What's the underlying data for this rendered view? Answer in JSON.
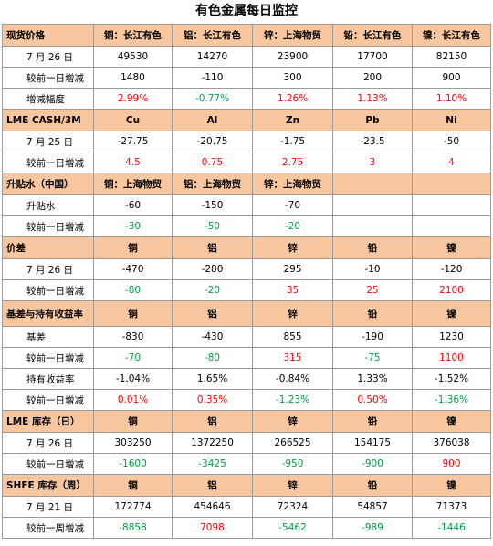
{
  "title": "有色金属每日监控",
  "sections": [
    {
      "header": [
        "现货价格",
        "铜：长江有色",
        "铝：长江有色",
        "锌：上海物贸",
        "铅：长江有色",
        "镍：长江有色"
      ],
      "rows": [
        {
          "label": "7 月 26 日",
          "cells": [
            {
              "v": "49530"
            },
            {
              "v": "14270"
            },
            {
              "v": "23900"
            },
            {
              "v": "17700"
            },
            {
              "v": "82150"
            }
          ]
        },
        {
          "label": "较前一日增减",
          "cells": [
            {
              "v": "1480"
            },
            {
              "v": "-110"
            },
            {
              "v": "300"
            },
            {
              "v": "200"
            },
            {
              "v": "900"
            }
          ]
        },
        {
          "label": "增减幅度",
          "cells": [
            {
              "v": "2.99%",
              "c": "red"
            },
            {
              "v": "-0.77%",
              "c": "green"
            },
            {
              "v": "1.26%",
              "c": "red"
            },
            {
              "v": "1.13%",
              "c": "red"
            },
            {
              "v": "1.10%",
              "c": "red"
            }
          ]
        }
      ]
    },
    {
      "header": [
        "LME CASH/3M",
        "Cu",
        "Al",
        "Zn",
        "Pb",
        "Ni"
      ],
      "rows": [
        {
          "label": "7 月 25 日",
          "cells": [
            {
              "v": "-27.75"
            },
            {
              "v": "-20.75"
            },
            {
              "v": "-1.75"
            },
            {
              "v": "-23.5"
            },
            {
              "v": "-50"
            }
          ]
        },
        {
          "label": "较前一日增减",
          "cells": [
            {
              "v": "4.5",
              "c": "red"
            },
            {
              "v": "0.75",
              "c": "red"
            },
            {
              "v": "2.75",
              "c": "red"
            },
            {
              "v": "3",
              "c": "red"
            },
            {
              "v": "4",
              "c": "red"
            }
          ]
        }
      ]
    },
    {
      "header": [
        "升贴水（中国）",
        "铜：上海物贸",
        "铝：上海物贸",
        "锌：上海物贸",
        "",
        ""
      ],
      "rows": [
        {
          "label": "升贴水",
          "cells": [
            {
              "v": "-60"
            },
            {
              "v": "-150"
            },
            {
              "v": "-70"
            },
            {
              "v": "",
              "blank": true
            },
            {
              "v": "",
              "blank": true
            }
          ]
        },
        {
          "label": "较前一日增减",
          "cells": [
            {
              "v": "-30",
              "c": "green"
            },
            {
              "v": "-50",
              "c": "green"
            },
            {
              "v": "-20",
              "c": "green"
            },
            {
              "v": "",
              "blank": true
            },
            {
              "v": "",
              "blank": true
            }
          ]
        }
      ]
    },
    {
      "header": [
        "价差",
        "铜",
        "铝",
        "锌",
        "铅",
        "镍"
      ],
      "rows": [
        {
          "label": "7 月 26 日",
          "cells": [
            {
              "v": "-470"
            },
            {
              "v": "-280"
            },
            {
              "v": "295"
            },
            {
              "v": "-10"
            },
            {
              "v": "-120"
            }
          ]
        },
        {
          "label": "较前一日增减",
          "cells": [
            {
              "v": "-80",
              "c": "green"
            },
            {
              "v": "-20",
              "c": "green"
            },
            {
              "v": "35",
              "c": "red"
            },
            {
              "v": "25",
              "c": "red"
            },
            {
              "v": "2100",
              "c": "red"
            }
          ]
        }
      ]
    },
    {
      "tall": true,
      "header": [
        "基差与持有收益率",
        "铜",
        "铝",
        "锌",
        "铅",
        "镍"
      ],
      "rows": [
        {
          "label": "基差",
          "cells": [
            {
              "v": "-830"
            },
            {
              "v": "-430"
            },
            {
              "v": "855"
            },
            {
              "v": "-190"
            },
            {
              "v": "1230"
            }
          ]
        },
        {
          "label": "较前一日增减",
          "cells": [
            {
              "v": "-70",
              "c": "green"
            },
            {
              "v": "-80",
              "c": "green"
            },
            {
              "v": "315",
              "c": "red"
            },
            {
              "v": "-75",
              "c": "green"
            },
            {
              "v": "1100",
              "c": "red"
            }
          ]
        },
        {
          "label": "持有收益率",
          "cells": [
            {
              "v": "-1.04%"
            },
            {
              "v": "1.65%"
            },
            {
              "v": "-0.84%"
            },
            {
              "v": "1.33%"
            },
            {
              "v": "-1.52%"
            }
          ]
        },
        {
          "label": "较前一日增减",
          "cells": [
            {
              "v": "0.01%",
              "c": "red"
            },
            {
              "v": "0.35%",
              "c": "red"
            },
            {
              "v": "-1.23%",
              "c": "green"
            },
            {
              "v": "0.50%",
              "c": "red"
            },
            {
              "v": "-1.36%",
              "c": "green"
            }
          ]
        }
      ]
    },
    {
      "header": [
        "LME 库存（日）",
        "铜",
        "铝",
        "锌",
        "铅",
        "镍"
      ],
      "rows": [
        {
          "label": "7 月 26 日",
          "cells": [
            {
              "v": "303250"
            },
            {
              "v": "1372250"
            },
            {
              "v": "266525"
            },
            {
              "v": "154175"
            },
            {
              "v": "376038"
            }
          ]
        },
        {
          "label": "较前一日增减",
          "cells": [
            {
              "v": "-1600",
              "c": "green"
            },
            {
              "v": "-3425",
              "c": "green"
            },
            {
              "v": "-950",
              "c": "green"
            },
            {
              "v": "-900",
              "c": "green"
            },
            {
              "v": "900",
              "c": "red"
            }
          ]
        }
      ]
    },
    {
      "header": [
        "SHFE 库存（周）",
        "铜",
        "铝",
        "锌",
        "铅",
        "镍"
      ],
      "rows": [
        {
          "label": "7 月 21 日",
          "cells": [
            {
              "v": "172774"
            },
            {
              "v": "454646"
            },
            {
              "v": "72324"
            },
            {
              "v": "54857"
            },
            {
              "v": "71373"
            }
          ]
        },
        {
          "label": "较前一周增减",
          "cells": [
            {
              "v": "-8858",
              "c": "green"
            },
            {
              "v": "7098",
              "c": "red"
            },
            {
              "v": "-5462",
              "c": "green"
            },
            {
              "v": "-989",
              "c": "green"
            },
            {
              "v": "-1446",
              "c": "green"
            }
          ]
        }
      ]
    }
  ]
}
